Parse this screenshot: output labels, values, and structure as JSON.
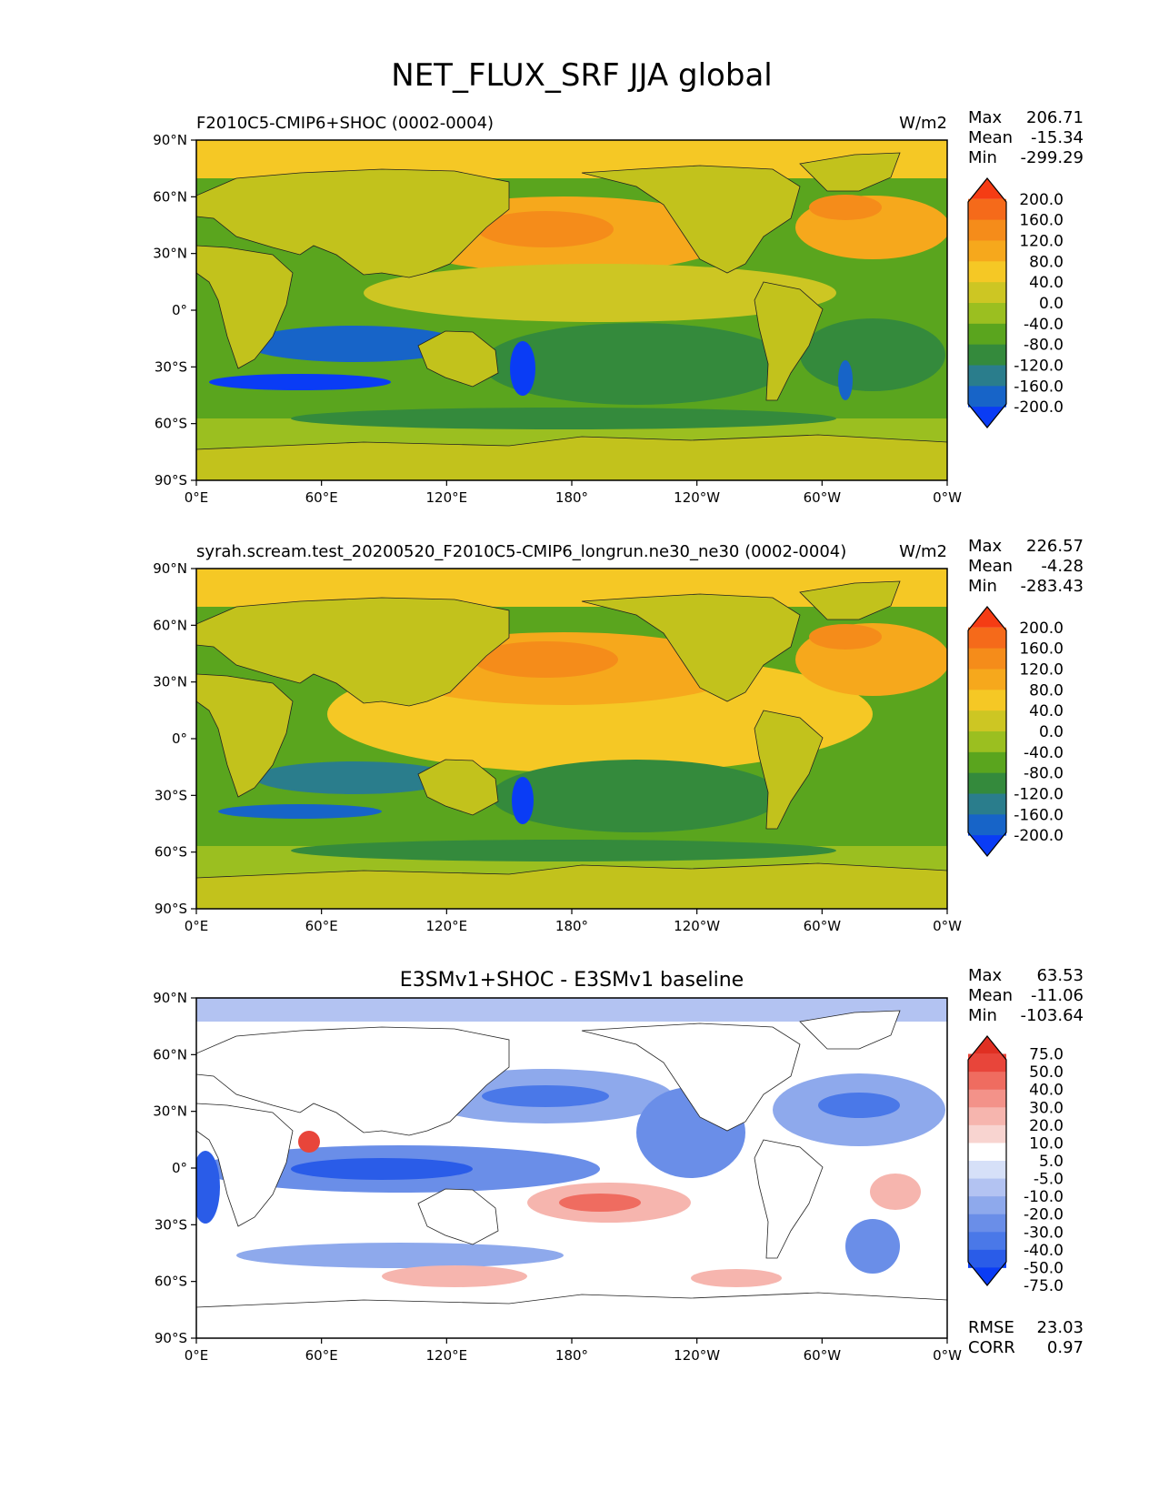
{
  "figure": {
    "title": "NET_FLUX_SRF JJA global"
  },
  "colors": {
    "abs_levels": [
      "#0a3cf5",
      "#1764c8",
      "#2a7d8c",
      "#348a3c",
      "#5aa51e",
      "#9bbf20",
      "#cdc623",
      "#f5c825",
      "#f6a81c",
      "#f58c1a",
      "#f56a1a",
      "#f53c14"
    ],
    "diff_levels": [
      "#0a3cf5",
      "#2a5ce8",
      "#4a78e8",
      "#6a8ee8",
      "#8ea9ec",
      "#b3c3f2",
      "#d6e0f8",
      "#ffffff",
      "#f8d4d0",
      "#f6b5ae",
      "#f39289",
      "#ef6c60",
      "#e8453a",
      "#e02f22"
    ],
    "ocean_abs": "#5aa51e",
    "land_abs": "#c2c21c",
    "ocean_diff": "#c7d3f5",
    "land_diff": "#ffffff"
  },
  "chart_data": [
    {
      "type": "heatmap",
      "title": "F2010C5-CMIP6+SHOC (0002-0004)",
      "units": "W/m2",
      "stats": {
        "max_label": "Max",
        "max": "206.71",
        "mean_label": "Mean",
        "mean": "-15.34",
        "min_label": "Min",
        "min": "-299.29"
      },
      "colorbar_labels": [
        "200.0",
        "160.0",
        "120.0",
        "80.0",
        "40.0",
        "0.0",
        "-40.0",
        "-80.0",
        "-120.0",
        "-160.0",
        "-200.0"
      ],
      "xticks": [
        "0°E",
        "60°E",
        "120°E",
        "180°",
        "120°W",
        "60°W",
        "0°W"
      ],
      "yticks": [
        "90°N",
        "60°N",
        "30°N",
        "0°",
        "30°S",
        "60°S",
        "90°S"
      ],
      "xlim": [
        0,
        360
      ],
      "ylim": [
        -90,
        90
      ]
    },
    {
      "type": "heatmap",
      "title": "syrah.scream.test_20200520_F2010C5-CMIP6_longrun.ne30_ne30 (0002-0004)",
      "units": "W/m2",
      "stats": {
        "max_label": "Max",
        "max": "226.57",
        "mean_label": "Mean",
        "mean": "-4.28",
        "min_label": "Min",
        "min": "-283.43"
      },
      "colorbar_labels": [
        "200.0",
        "160.0",
        "120.0",
        "80.0",
        "40.0",
        "0.0",
        "-40.0",
        "-80.0",
        "-120.0",
        "-160.0",
        "-200.0"
      ],
      "xticks": [
        "0°E",
        "60°E",
        "120°E",
        "180°",
        "120°W",
        "60°W",
        "0°W"
      ],
      "yticks": [
        "90°N",
        "60°N",
        "30°N",
        "0°",
        "30°S",
        "60°S",
        "90°S"
      ],
      "xlim": [
        0,
        360
      ],
      "ylim": [
        -90,
        90
      ]
    },
    {
      "type": "heatmap",
      "title": "E3SMv1+SHOC - E3SMv1 baseline",
      "units": "",
      "stats": {
        "max_label": "Max",
        "max": "63.53",
        "mean_label": "Mean",
        "mean": "-11.06",
        "min_label": "Min",
        "min": "-103.64"
      },
      "colorbar_labels": [
        "75.0",
        "50.0",
        "40.0",
        "30.0",
        "20.0",
        "10.0",
        "5.0",
        "-5.0",
        "-10.0",
        "-20.0",
        "-30.0",
        "-40.0",
        "-50.0",
        "-75.0"
      ],
      "xticks": [
        "0°E",
        "60°E",
        "120°E",
        "180°",
        "120°W",
        "60°W",
        "0°W"
      ],
      "yticks": [
        "90°N",
        "60°N",
        "30°N",
        "0°",
        "30°S",
        "60°S",
        "90°S"
      ],
      "xlim": [
        0,
        360
      ],
      "ylim": [
        -90,
        90
      ],
      "metrics": {
        "rmse_label": "RMSE",
        "rmse": "23.03",
        "corr_label": "CORR",
        "corr": "0.97"
      }
    }
  ]
}
